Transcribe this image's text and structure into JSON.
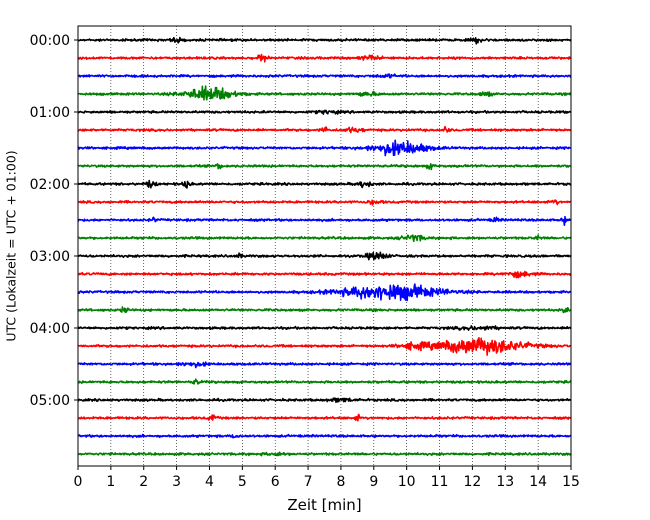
{
  "chart_data": {
    "type": "line",
    "title": "",
    "xlabel": "Zeit  [min]",
    "ylabel": "UTC (Lokalzeit = UTC + 01:00)",
    "xlim": [
      0,
      15
    ],
    "x_ticks": [
      "0",
      "1",
      "2",
      "3",
      "4",
      "5",
      "6",
      "7",
      "8",
      "9",
      "10",
      "11",
      "12",
      "13",
      "14",
      "15"
    ],
    "y_tick_labels": [
      "00:00",
      "01:00",
      "02:00",
      "03:00",
      "04:00",
      "05:00"
    ],
    "y_tick_trace_indices": [
      0,
      4,
      8,
      12,
      16,
      20
    ],
    "grid": {
      "x": "dotted",
      "y": "off"
    },
    "colors": [
      "#000000",
      "#ff0000",
      "#0000ff",
      "#008000"
    ],
    "trace_minutes": 15,
    "traces": [
      {
        "start": "00:00",
        "color": "#000000",
        "events": [
          {
            "t": 3.0,
            "amp": 0.2,
            "dur": 0.15
          },
          {
            "t": 12.2,
            "amp": 0.2,
            "dur": 0.2
          }
        ]
      },
      {
        "start": "00:15",
        "color": "#ff0000",
        "events": [
          {
            "t": 5.6,
            "amp": 0.25,
            "dur": 0.15
          },
          {
            "t": 8.9,
            "amp": 0.15,
            "dur": 0.3
          }
        ]
      },
      {
        "start": "00:30",
        "color": "#0000ff",
        "events": [
          {
            "t": 9.4,
            "amp": 0.1,
            "dur": 0.3
          }
        ]
      },
      {
        "start": "00:45",
        "color": "#008000",
        "events": [
          {
            "t": 4.0,
            "amp": 0.55,
            "dur": 0.7
          },
          {
            "t": 8.8,
            "amp": 0.15,
            "dur": 0.3
          },
          {
            "t": 12.4,
            "amp": 0.2,
            "dur": 0.15
          }
        ]
      },
      {
        "start": "01:00",
        "color": "#000000",
        "events": [
          {
            "t": 7.6,
            "amp": 0.12,
            "dur": 0.3
          }
        ]
      },
      {
        "start": "01:15",
        "color": "#ff0000",
        "events": [
          {
            "t": 7.5,
            "amp": 0.25,
            "dur": 0.1
          },
          {
            "t": 8.4,
            "amp": 0.15,
            "dur": 0.3
          },
          {
            "t": 11.2,
            "amp": 0.2,
            "dur": 0.1
          }
        ]
      },
      {
        "start": "01:30",
        "color": "#0000ff",
        "events": [
          {
            "t": 9.8,
            "amp": 0.55,
            "dur": 0.8
          }
        ]
      },
      {
        "start": "01:45",
        "color": "#008000",
        "events": [
          {
            "t": 4.3,
            "amp": 0.2,
            "dur": 0.1
          },
          {
            "t": 10.7,
            "amp": 0.2,
            "dur": 0.1
          }
        ]
      },
      {
        "start": "02:00",
        "color": "#000000",
        "events": [
          {
            "t": 2.2,
            "amp": 0.25,
            "dur": 0.15
          },
          {
            "t": 3.3,
            "amp": 0.3,
            "dur": 0.1
          },
          {
            "t": 8.7,
            "amp": 0.25,
            "dur": 0.2
          }
        ]
      },
      {
        "start": "02:15",
        "color": "#ff0000",
        "events": [
          {
            "t": 9.0,
            "amp": 0.15,
            "dur": 0.2
          },
          {
            "t": 14.5,
            "amp": 0.2,
            "dur": 0.1
          }
        ]
      },
      {
        "start": "02:30",
        "color": "#0000ff",
        "events": [
          {
            "t": 2.3,
            "amp": 0.15,
            "dur": 0.1
          },
          {
            "t": 12.7,
            "amp": 0.2,
            "dur": 0.1
          },
          {
            "t": 14.8,
            "amp": 0.25,
            "dur": 0.1
          }
        ]
      },
      {
        "start": "02:45",
        "color": "#008000",
        "events": [
          {
            "t": 10.2,
            "amp": 0.25,
            "dur": 0.3
          },
          {
            "t": 14.0,
            "amp": 0.15,
            "dur": 0.1
          }
        ]
      },
      {
        "start": "03:00",
        "color": "#000000",
        "events": [
          {
            "t": 9.1,
            "amp": 0.3,
            "dur": 0.3
          },
          {
            "t": 4.9,
            "amp": 0.15,
            "dur": 0.1
          }
        ]
      },
      {
        "start": "03:15",
        "color": "#ff0000",
        "events": [
          {
            "t": 13.4,
            "amp": 0.2,
            "dur": 0.4
          }
        ]
      },
      {
        "start": "03:30",
        "color": "#0000ff",
        "events": [
          {
            "t": 9.5,
            "amp": 0.65,
            "dur": 1.4
          }
        ]
      },
      {
        "start": "03:45",
        "color": "#008000",
        "events": [
          {
            "t": 1.4,
            "amp": 0.25,
            "dur": 0.1
          },
          {
            "t": 14.8,
            "amp": 0.2,
            "dur": 0.1
          }
        ]
      },
      {
        "start": "04:00",
        "color": "#000000",
        "events": [
          {
            "t": 12.2,
            "amp": 0.12,
            "dur": 0.6
          }
        ]
      },
      {
        "start": "04:15",
        "color": "#ff0000",
        "events": [
          {
            "t": 12.2,
            "amp": 0.65,
            "dur": 1.3
          },
          {
            "t": 10.2,
            "amp": 0.2,
            "dur": 0.4
          }
        ]
      },
      {
        "start": "04:30",
        "color": "#0000ff",
        "events": [
          {
            "t": 3.5,
            "amp": 0.15,
            "dur": 0.4
          }
        ]
      },
      {
        "start": "04:45",
        "color": "#008000",
        "events": [
          {
            "t": 3.6,
            "amp": 0.2,
            "dur": 0.1
          }
        ]
      },
      {
        "start": "05:00",
        "color": "#000000",
        "events": [
          {
            "t": 8.0,
            "amp": 0.12,
            "dur": 0.4
          }
        ]
      },
      {
        "start": "05:15",
        "color": "#ff0000",
        "events": [
          {
            "t": 4.1,
            "amp": 0.3,
            "dur": 0.1
          },
          {
            "t": 8.5,
            "amp": 0.2,
            "dur": 0.1
          }
        ]
      },
      {
        "start": "05:30",
        "color": "#0000ff",
        "events": [
          {
            "t": 4.8,
            "amp": 0.2,
            "dur": 0.1
          }
        ]
      },
      {
        "start": "05:45",
        "color": "#008000",
        "events": [
          {
            "t": 6.0,
            "amp": 0.1,
            "dur": 0.3
          }
        ]
      }
    ]
  }
}
